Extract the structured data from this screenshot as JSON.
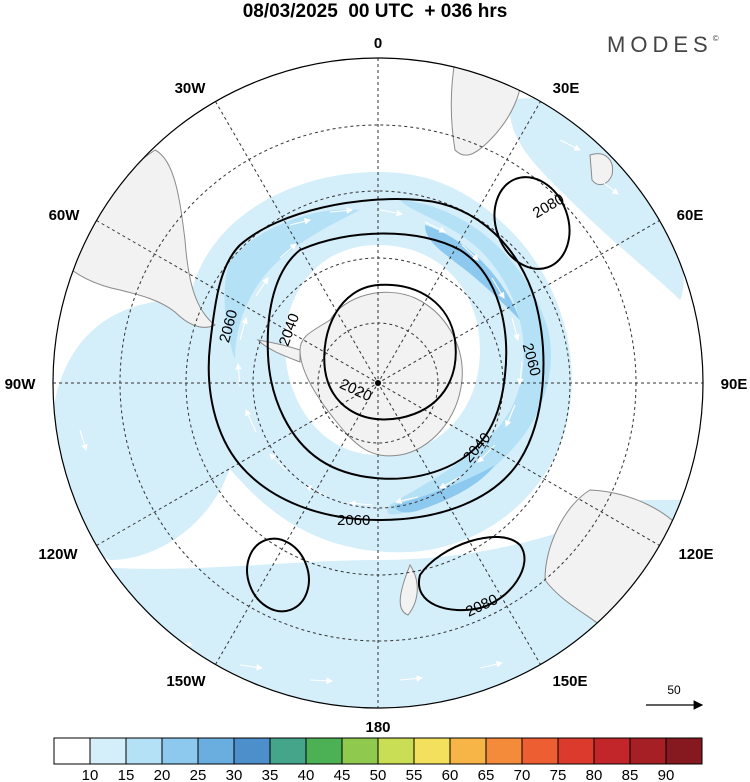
{
  "header": {
    "title": "08/03/2025  00 UTC  + 036 hrs",
    "brand": "MODES",
    "brand_mark": "©"
  },
  "longitude_labels": {
    "lon_0": "0",
    "lon_30e": "30E",
    "lon_60e": "60E",
    "lon_90e": "90E",
    "lon_120e": "120E",
    "lon_150e": "150E",
    "lon_180": "180",
    "lon_150w": "150W",
    "lon_120w": "120W",
    "lon_90w": "90W",
    "lon_60w": "60W",
    "lon_30w": "30W"
  },
  "contour_labels": {
    "c2080_ne": "2080",
    "c2060_w": "2060",
    "c2040_w": "2040",
    "c2020": "2020",
    "c2060_e": "2060",
    "c2040_se": "2040",
    "c2060_s": "2060",
    "c2080_se": "2080"
  },
  "reference_vector": {
    "label": "50"
  },
  "colorbar": {
    "labels": [
      "10",
      "15",
      "20",
      "25",
      "30",
      "35",
      "40",
      "45",
      "50",
      "55",
      "60",
      "65",
      "70",
      "75",
      "80",
      "85",
      "90"
    ],
    "colors": [
      "#ffffff",
      "#d4eefa",
      "#b5e1f7",
      "#8dc8ee",
      "#6aaedf",
      "#4d8fca",
      "#44a58a",
      "#4cb154",
      "#8fc94d",
      "#c9dd55",
      "#f3e05d",
      "#f7b447",
      "#f38b3a",
      "#ed5f32",
      "#dd3a2e",
      "#c3262a",
      "#a51f25",
      "#86181f"
    ]
  },
  "colors": {
    "land": "#f2f2f2",
    "coast": "#8a8a8a",
    "grid": "#333333",
    "contour": "#000000",
    "vector": "#ffffff"
  }
}
